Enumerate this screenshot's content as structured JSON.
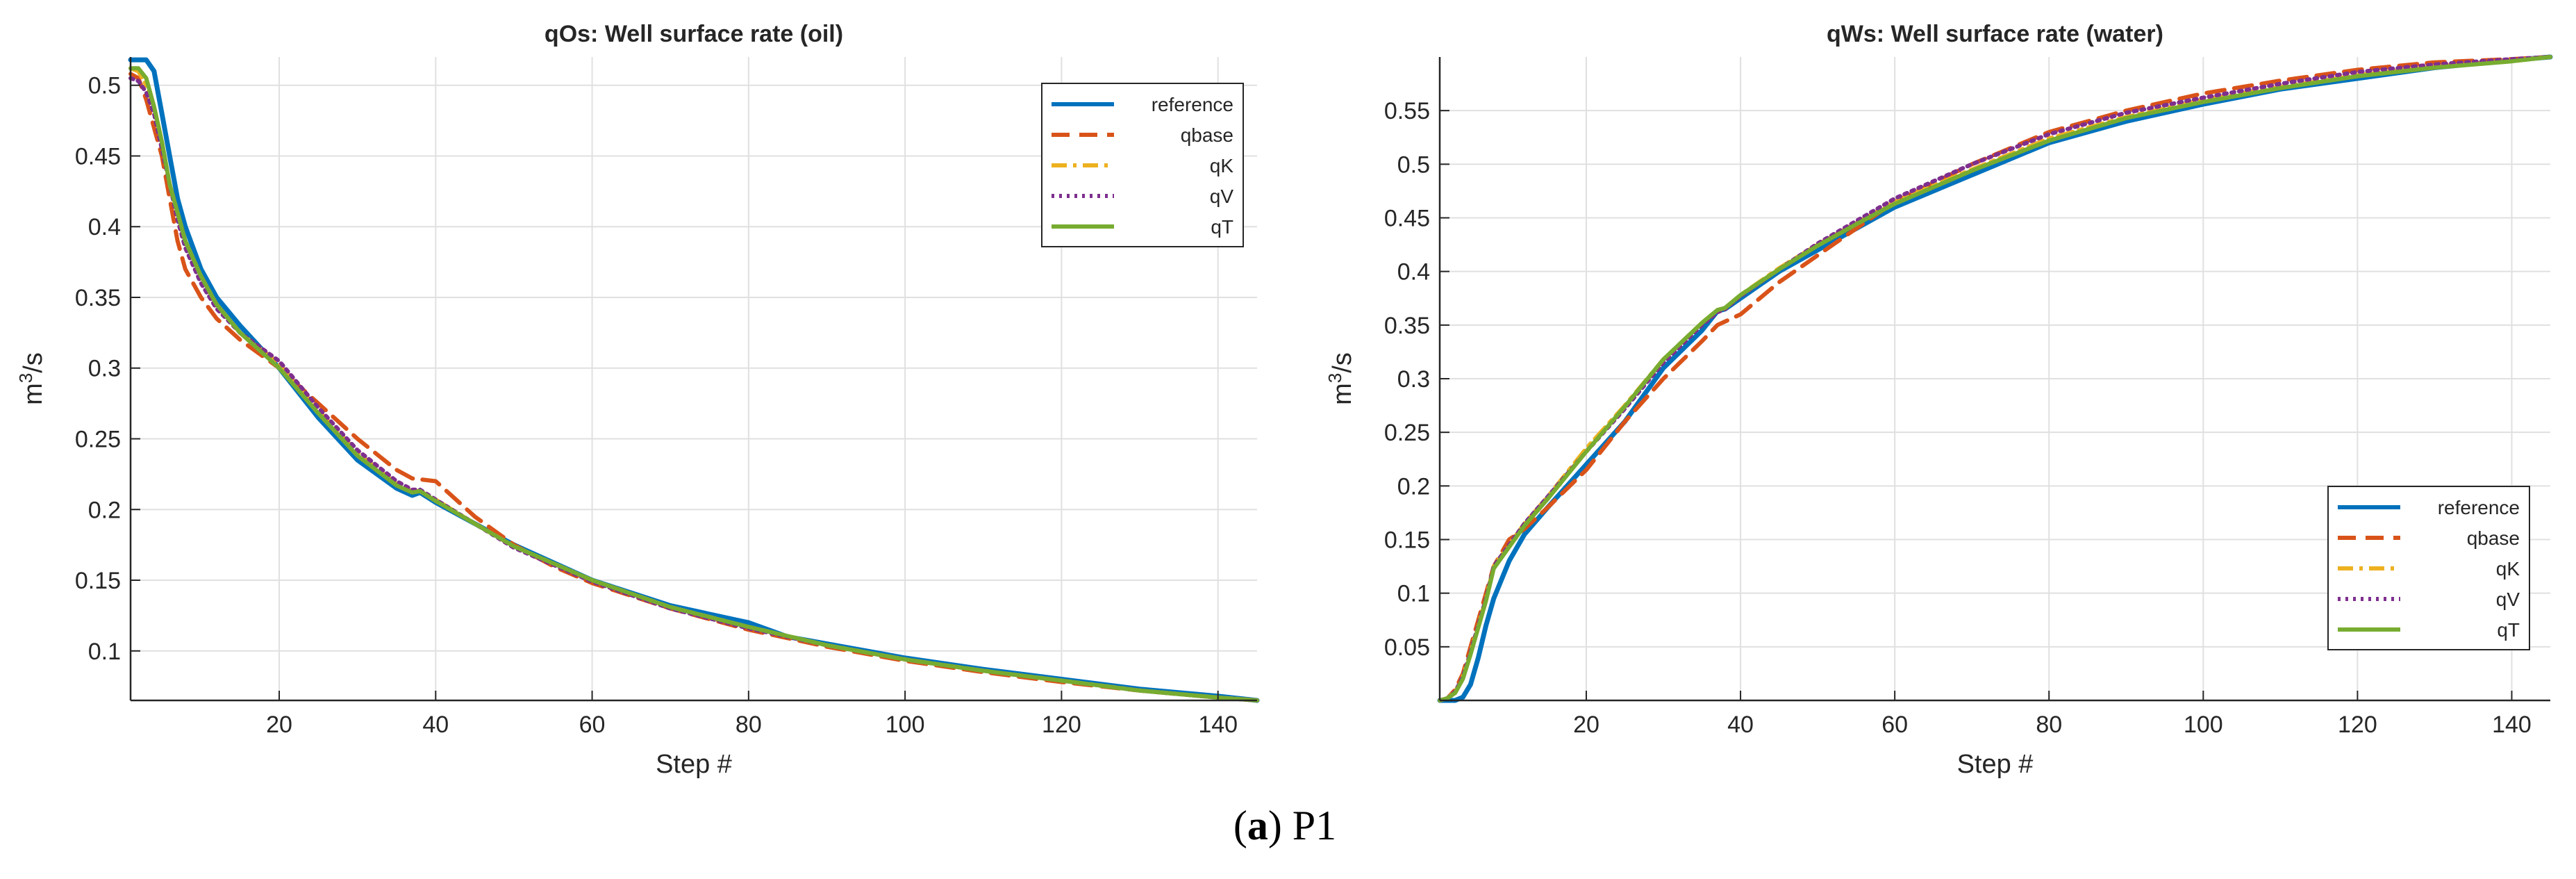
{
  "caption": {
    "letter": "a",
    "label": "P1"
  },
  "chart_data": [
    {
      "type": "line",
      "title": "qOs: Well surface rate (oil)",
      "xlabel": "Step #",
      "ylabel": "m3/s",
      "xlim": [
        1,
        145
      ],
      "ylim": [
        0.065,
        0.52
      ],
      "xticks": [
        20,
        40,
        60,
        80,
        100,
        120,
        140
      ],
      "yticks": [
        0.1,
        0.15,
        0.2,
        0.25,
        0.3,
        0.35,
        0.4,
        0.45,
        0.5
      ],
      "grid": true,
      "legend_position": "top-right",
      "series": [
        {
          "name": "reference",
          "color": "#0072BD",
          "dash": "solid",
          "x": [
            1,
            3,
            4,
            5,
            6,
            7,
            8,
            10,
            12,
            15,
            20,
            25,
            30,
            35,
            37,
            38,
            40,
            45,
            50,
            60,
            70,
            80,
            85,
            90,
            100,
            110,
            120,
            130,
            140,
            145
          ],
          "y": [
            0.518,
            0.518,
            0.51,
            0.48,
            0.45,
            0.42,
            0.4,
            0.37,
            0.35,
            0.33,
            0.3,
            0.265,
            0.235,
            0.215,
            0.21,
            0.212,
            0.205,
            0.19,
            0.175,
            0.15,
            0.132,
            0.12,
            0.11,
            0.105,
            0.095,
            0.087,
            0.08,
            0.073,
            0.068,
            0.065
          ]
        },
        {
          "name": "qbase",
          "color": "#D95319",
          "dash": "dashed",
          "x": [
            1,
            2,
            3,
            4,
            5,
            6,
            7,
            8,
            10,
            12,
            15,
            20,
            25,
            30,
            35,
            37,
            40,
            45,
            50,
            55,
            60,
            70,
            80,
            90,
            100,
            110,
            120,
            130,
            140,
            145
          ],
          "y": [
            0.508,
            0.505,
            0.49,
            0.47,
            0.45,
            0.42,
            0.39,
            0.37,
            0.35,
            0.335,
            0.32,
            0.3,
            0.275,
            0.25,
            0.228,
            0.222,
            0.22,
            0.195,
            0.175,
            0.16,
            0.148,
            0.13,
            0.115,
            0.103,
            0.093,
            0.085,
            0.078,
            0.072,
            0.067,
            0.065
          ]
        },
        {
          "name": "qK",
          "color": "#EDB120",
          "dash": "dashdot",
          "x": [
            1,
            2,
            3,
            4,
            5,
            6,
            7,
            8,
            10,
            12,
            15,
            20,
            25,
            30,
            35,
            37,
            38,
            40,
            45,
            50,
            60,
            70,
            80,
            90,
            100,
            110,
            120,
            130,
            140,
            145
          ],
          "y": [
            0.512,
            0.51,
            0.5,
            0.485,
            0.46,
            0.43,
            0.41,
            0.39,
            0.365,
            0.345,
            0.325,
            0.303,
            0.27,
            0.24,
            0.218,
            0.213,
            0.213,
            0.207,
            0.19,
            0.174,
            0.15,
            0.131,
            0.117,
            0.104,
            0.094,
            0.086,
            0.079,
            0.072,
            0.067,
            0.065
          ]
        },
        {
          "name": "qV",
          "color": "#7E2F8E",
          "dash": "dotted",
          "x": [
            1,
            2,
            3,
            4,
            5,
            6,
            7,
            8,
            10,
            12,
            15,
            20,
            25,
            30,
            35,
            37,
            38,
            40,
            45,
            50,
            60,
            70,
            80,
            90,
            100,
            110,
            120,
            130,
            140,
            145
          ],
          "y": [
            0.505,
            0.503,
            0.495,
            0.48,
            0.455,
            0.43,
            0.405,
            0.385,
            0.36,
            0.342,
            0.325,
            0.305,
            0.272,
            0.242,
            0.22,
            0.214,
            0.214,
            0.207,
            0.19,
            0.173,
            0.149,
            0.13,
            0.116,
            0.104,
            0.094,
            0.086,
            0.079,
            0.072,
            0.067,
            0.065
          ]
        },
        {
          "name": "qT",
          "color": "#77AC30",
          "dash": "solid",
          "x": [
            1,
            2,
            3,
            4,
            5,
            6,
            7,
            8,
            10,
            12,
            15,
            20,
            25,
            30,
            35,
            37,
            38,
            40,
            45,
            50,
            60,
            70,
            80,
            90,
            100,
            110,
            120,
            130,
            140,
            145
          ],
          "y": [
            0.512,
            0.512,
            0.505,
            0.485,
            0.46,
            0.43,
            0.41,
            0.39,
            0.365,
            0.345,
            0.325,
            0.3,
            0.268,
            0.238,
            0.217,
            0.212,
            0.213,
            0.206,
            0.19,
            0.174,
            0.15,
            0.131,
            0.117,
            0.104,
            0.094,
            0.086,
            0.079,
            0.072,
            0.067,
            0.065
          ]
        }
      ]
    },
    {
      "type": "line",
      "title": "qWs: Well surface rate (water)",
      "xlabel": "Step #",
      "ylabel": "m3/s",
      "xlim": [
        1,
        145
      ],
      "ylim": [
        0,
        0.6
      ],
      "xticks": [
        20,
        40,
        60,
        80,
        100,
        120,
        140
      ],
      "yticks": [
        0.05,
        0.1,
        0.15,
        0.2,
        0.25,
        0.3,
        0.35,
        0.4,
        0.45,
        0.5,
        0.55
      ],
      "grid": true,
      "legend_position": "bottom-right",
      "series": [
        {
          "name": "reference",
          "color": "#0072BD",
          "dash": "solid",
          "x": [
            1,
            3,
            4,
            5,
            6,
            7,
            8,
            10,
            12,
            15,
            20,
            25,
            30,
            35,
            37,
            38,
            40,
            45,
            50,
            55,
            60,
            70,
            80,
            90,
            100,
            110,
            120,
            130,
            140,
            145
          ],
          "y": [
            0,
            0,
            0.003,
            0.015,
            0.04,
            0.07,
            0.095,
            0.13,
            0.155,
            0.18,
            0.22,
            0.26,
            0.31,
            0.345,
            0.363,
            0.365,
            0.375,
            0.4,
            0.42,
            0.44,
            0.46,
            0.49,
            0.52,
            0.54,
            0.556,
            0.57,
            0.58,
            0.59,
            0.597,
            0.6
          ]
        },
        {
          "name": "qbase",
          "color": "#D95319",
          "dash": "dashed",
          "x": [
            1,
            2,
            3,
            4,
            5,
            6,
            7,
            8,
            10,
            12,
            15,
            20,
            25,
            30,
            35,
            37,
            40,
            45,
            50,
            55,
            60,
            70,
            80,
            90,
            100,
            110,
            120,
            130,
            140,
            145
          ],
          "y": [
            0,
            0.002,
            0.01,
            0.025,
            0.05,
            0.075,
            0.1,
            0.125,
            0.15,
            0.16,
            0.18,
            0.215,
            0.26,
            0.3,
            0.335,
            0.35,
            0.36,
            0.39,
            0.415,
            0.44,
            0.465,
            0.5,
            0.53,
            0.55,
            0.566,
            0.578,
            0.588,
            0.595,
            0.598,
            0.6
          ]
        },
        {
          "name": "qK",
          "color": "#EDB120",
          "dash": "dashdot",
          "x": [
            1,
            2,
            3,
            4,
            5,
            6,
            7,
            8,
            10,
            12,
            15,
            20,
            25,
            30,
            35,
            37,
            38,
            40,
            45,
            50,
            55,
            60,
            70,
            80,
            90,
            100,
            110,
            120,
            130,
            140,
            145
          ],
          "y": [
            0,
            0.002,
            0.008,
            0.022,
            0.045,
            0.07,
            0.095,
            0.125,
            0.145,
            0.165,
            0.19,
            0.235,
            0.275,
            0.318,
            0.352,
            0.364,
            0.366,
            0.378,
            0.403,
            0.425,
            0.445,
            0.465,
            0.495,
            0.524,
            0.544,
            0.56,
            0.572,
            0.583,
            0.591,
            0.597,
            0.6
          ]
        },
        {
          "name": "qV",
          "color": "#7E2F8E",
          "dash": "dotted",
          "x": [
            1,
            2,
            3,
            4,
            5,
            6,
            7,
            8,
            10,
            12,
            15,
            20,
            25,
            30,
            35,
            37,
            38,
            40,
            45,
            50,
            55,
            60,
            70,
            80,
            90,
            100,
            110,
            120,
            130,
            140,
            145
          ],
          "y": [
            0,
            0.002,
            0.008,
            0.022,
            0.045,
            0.07,
            0.095,
            0.125,
            0.145,
            0.165,
            0.19,
            0.232,
            0.272,
            0.315,
            0.35,
            0.362,
            0.365,
            0.377,
            0.402,
            0.426,
            0.447,
            0.468,
            0.5,
            0.528,
            0.548,
            0.562,
            0.575,
            0.586,
            0.593,
            0.598,
            0.6
          ]
        },
        {
          "name": "qT",
          "color": "#77AC30",
          "dash": "solid",
          "x": [
            1,
            2,
            3,
            4,
            5,
            6,
            7,
            8,
            10,
            12,
            15,
            20,
            25,
            30,
            35,
            37,
            38,
            40,
            45,
            50,
            55,
            60,
            70,
            80,
            90,
            100,
            110,
            120,
            130,
            140,
            145
          ],
          "y": [
            0,
            0.002,
            0.007,
            0.02,
            0.043,
            0.068,
            0.093,
            0.123,
            0.143,
            0.163,
            0.188,
            0.232,
            0.274,
            0.318,
            0.352,
            0.364,
            0.366,
            0.378,
            0.402,
            0.424,
            0.444,
            0.463,
            0.494,
            0.522,
            0.543,
            0.558,
            0.571,
            0.582,
            0.59,
            0.596,
            0.6
          ]
        }
      ]
    }
  ]
}
